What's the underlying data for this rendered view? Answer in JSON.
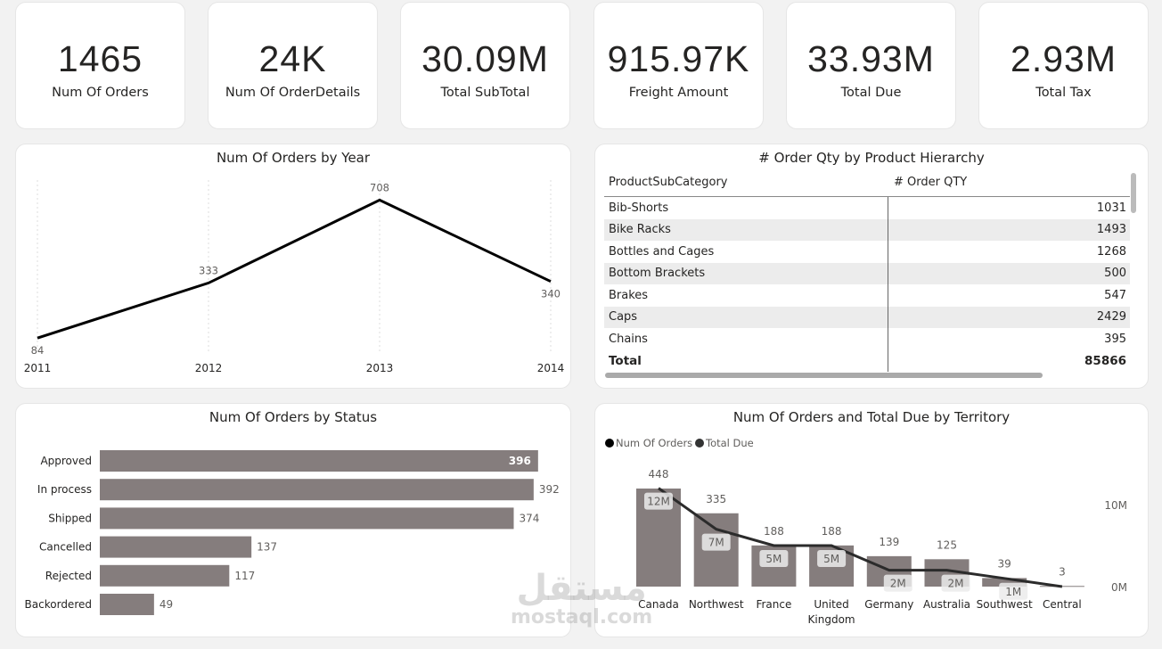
{
  "kpis": [
    {
      "value": "1465",
      "label": "Num Of Orders"
    },
    {
      "value": "24K",
      "label": "Num Of OrderDetails"
    },
    {
      "value": "30.09M",
      "label": "Total SubTotal"
    },
    {
      "value": "915.97K",
      "label": "Freight Amount"
    },
    {
      "value": "33.93M",
      "label": "Total Due"
    },
    {
      "value": "2.93M",
      "label": "Total Tax"
    }
  ],
  "table": {
    "title": "# Order Qty by Product Hierarchy",
    "columns": [
      "ProductSubCategory",
      "# Order QTY"
    ],
    "rows": [
      [
        "Bib-Shorts",
        "1031"
      ],
      [
        "Bike Racks",
        "1493"
      ],
      [
        "Bottles and Cages",
        "1268"
      ],
      [
        "Bottom Brackets",
        "500"
      ],
      [
        "Brakes",
        "547"
      ],
      [
        "Caps",
        "2429"
      ],
      [
        "Chains",
        "395"
      ]
    ],
    "total": [
      "Total",
      "85866"
    ]
  },
  "chart_data": [
    {
      "type": "line",
      "title": "Num Of Orders by Year",
      "categories": [
        "2011",
        "2012",
        "2013",
        "2014"
      ],
      "values": [
        84,
        333,
        708,
        340
      ],
      "data_labels": [
        "84",
        "333",
        "708",
        "340"
      ],
      "color": "#000000",
      "grid": "vertical dotted"
    },
    {
      "type": "bar",
      "orientation": "horizontal",
      "title": "Num Of Orders by Status",
      "categories": [
        "Approved",
        "In process",
        "Shipped",
        "Cancelled",
        "Rejected",
        "Backordered"
      ],
      "values": [
        396,
        392,
        374,
        137,
        117,
        49
      ],
      "color": "#857d7d"
    },
    {
      "type": "bar+line",
      "title": "Num Of Orders and Total Due by Territory",
      "categories": [
        "Canada",
        "Northwest",
        "France",
        "United Kingdom",
        "Germany",
        "Australia",
        "Southwest",
        "Central"
      ],
      "series": [
        {
          "name": "Num Of Orders",
          "type": "bar",
          "values": [
            448,
            335,
            188,
            188,
            139,
            125,
            39,
            3
          ],
          "color": "#857d7d"
        },
        {
          "name": "Total Due",
          "type": "line",
          "values": [
            12,
            7,
            5,
            5,
            2,
            2,
            1,
            0
          ],
          "labels": [
            "12M",
            "7M",
            "5M",
            "5M",
            "2M",
            "2M",
            "1M",
            ""
          ],
          "color": "#2b2b2b"
        }
      ],
      "y2_ticks": [
        "10M",
        "0M"
      ],
      "legend": "top-left"
    }
  ],
  "watermark": {
    "arabic": "مستقل",
    "latin": "mostaql.com"
  }
}
